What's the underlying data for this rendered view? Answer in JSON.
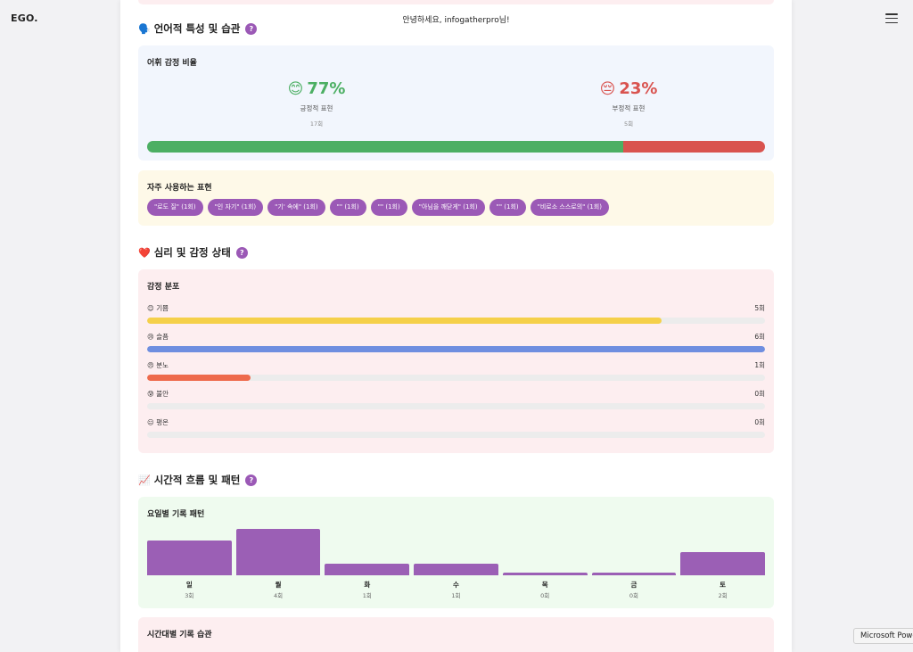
{
  "app": {
    "brand": "EGO."
  },
  "greeting": "안녕하세요, infogatherpro님!",
  "sections": {
    "language": {
      "emoji": "🗣️",
      "title": "언어적 특성 및 습관",
      "help": "?"
    },
    "emotion": {
      "emoji": "❤️",
      "title": "심리 및 감정 상태",
      "help": "?"
    },
    "time": {
      "emoji": "📈",
      "title": "시간적 흐름 및 패턴",
      "help": "?"
    }
  },
  "sentiment": {
    "title": "어휘 감정 비율",
    "positive": {
      "face": "😊",
      "percent": "77%",
      "label": "긍정적 표현",
      "count": "17회",
      "fraction": 0.77,
      "color": "#4caf63"
    },
    "negative": {
      "face": "😔",
      "percent": "23%",
      "label": "부정적 표현",
      "count": "5회",
      "fraction": 0.23,
      "color": "#d9534f"
    }
  },
  "expressions": {
    "title": "자주 사용하는 표현",
    "chips": [
      "\"로도 질\" (1회)",
      "\"인 자기\" (1회)",
      "\"기' 속에\" (1회)",
      "\"\" (1회)",
      "\"\" (1회)",
      "\"아님을 깨닫게\" (1회)",
      "\"\" (1회)",
      "\"비로소 스스로의\" (1회)"
    ]
  },
  "emotion_distribution": {
    "title": "감정 분포",
    "items": [
      {
        "face": "😊",
        "label": "기쁨",
        "count": "5회",
        "fraction": 0.833,
        "color": "#f5d04a"
      },
      {
        "face": "😢",
        "label": "슬픔",
        "count": "6회",
        "fraction": 1.0,
        "color": "#6f8ee0"
      },
      {
        "face": "😠",
        "label": "분노",
        "count": "1회",
        "fraction": 0.167,
        "color": "#ee6a4c"
      },
      {
        "face": "😰",
        "label": "불안",
        "count": "0회",
        "fraction": 0,
        "color": "#9b59b6"
      },
      {
        "face": "😐",
        "label": "평온",
        "count": "0회",
        "fraction": 0,
        "color": "#4caf63"
      }
    ]
  },
  "weekday": {
    "title": "요일별 기록 패턴",
    "chart_data": {
      "type": "bar",
      "categories": [
        "일",
        "월",
        "화",
        "수",
        "목",
        "금",
        "토"
      ],
      "values": [
        3,
        4,
        1,
        1,
        0,
        0,
        2
      ],
      "count_labels": [
        "3회",
        "4회",
        "1회",
        "1회",
        "0회",
        "0회",
        "2회"
      ],
      "ylim": [
        0,
        4
      ],
      "color": "#9b5fb5"
    }
  },
  "hourly": {
    "title": "시간대별 기록 습관"
  },
  "tooltip": "Microsoft PowerPoint"
}
